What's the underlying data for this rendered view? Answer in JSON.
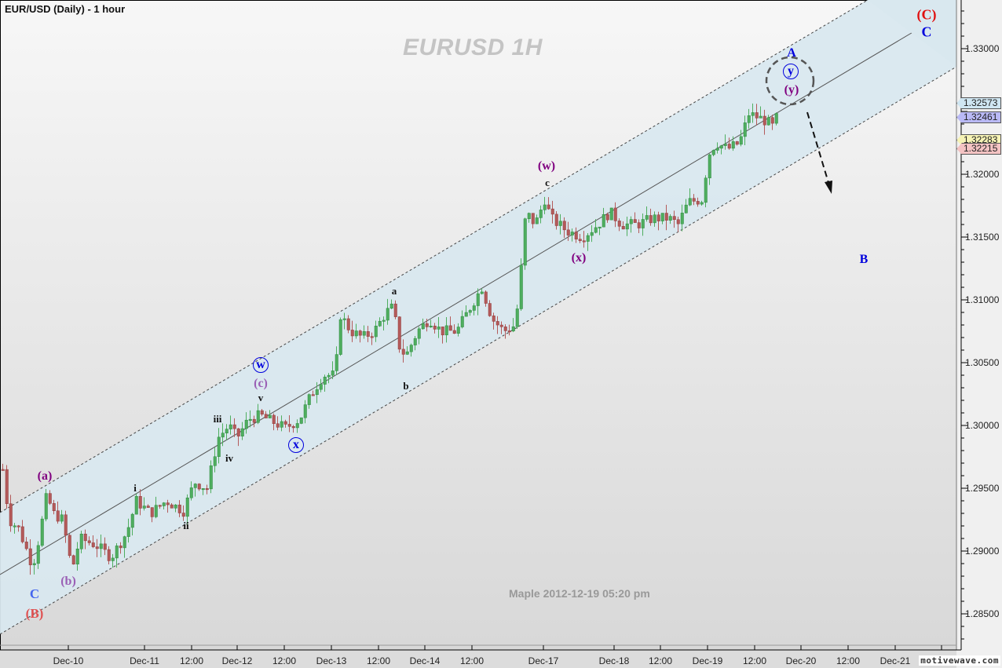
{
  "header": {
    "title": "EUR/USD (Daily) - 1 hour",
    "watermark": "EURUSD  1H",
    "stamp": "Maple  2012-12-19  05:20 pm",
    "logo": "motivewave.com"
  },
  "colors": {
    "up_candle": "#4fae5f",
    "down_candle": "#b45a5a",
    "channel_fill": "#d9e8ef",
    "tag_1_32573": "#cfe6f2",
    "tag_1_32461": "#b9b9f5",
    "tag_1_32283": "#f6f3b5",
    "tag_1_32215": "#f4c3c3",
    "wave_blue": "#0000dd",
    "wave_purple": "#800080",
    "wave_red": "#e01010",
    "wave_lightpurple": "#9a5fb5",
    "wave_lightblue": "#4466ee",
    "wave_lightred": "#e05050"
  },
  "chart_data": {
    "type": "candlestick",
    "title": "EUR/USD (Daily) - 1 hour",
    "subtitle": "EURUSD 1H",
    "xlabel": "",
    "ylabel": "",
    "ylim": [
      1.282,
      1.3375
    ],
    "grid": false,
    "y_ticks": [
      "1.33000",
      "1.32500",
      "1.32000",
      "1.31500",
      "1.31000",
      "1.30500",
      "1.30000",
      "1.29500",
      "1.29000",
      "1.28500"
    ],
    "x_ticks": [
      "Dec-10",
      "Dec-11",
      "12:00",
      "Dec-12",
      "12:00",
      "Dec-13",
      "12:00",
      "Dec-14",
      "12:00",
      "Dec-17",
      "Dec-18",
      "12:00",
      "Dec-19",
      "12:00",
      "Dec-20",
      "12:00",
      "Dec-21"
    ],
    "price_tags": [
      {
        "value": "1.32573",
        "color": "#cfe6f2"
      },
      {
        "value": "1.32461",
        "color": "#b9b9f5"
      },
      {
        "value": "1.32283",
        "color": "#f6f3b5"
      },
      {
        "value": "1.32215",
        "color": "#f4c3c3"
      }
    ],
    "approx_path": [
      {
        "t": "Dec-07 late",
        "close": 1.292
      },
      {
        "t": "Dec-10 00:00",
        "close": 1.2905,
        "note": "low ~1.2877 (wave C / (B))"
      },
      {
        "t": "Dec-10 02:00",
        "close": 1.2945,
        "note": "wave (a) ~1.2952"
      },
      {
        "t": "Dec-10 06:00",
        "close": 1.2885,
        "note": "wave (b) ~1.2882"
      },
      {
        "t": "Dec-11 00:00",
        "close": 1.2935,
        "note": "wave i ~1.2943"
      },
      {
        "t": "Dec-11 12:00",
        "close": 1.2935,
        "note": "wave ii ~1.2928"
      },
      {
        "t": "Dec-12 00:00",
        "close": 1.3005,
        "note": "wave iii ~1.3010"
      },
      {
        "t": "Dec-12 03:00",
        "close": 1.2995,
        "note": "wave iv ~1.2990"
      },
      {
        "t": "Dec-12 08:00",
        "close": 1.301,
        "note": "wave v / (c) / w ~1.3015"
      },
      {
        "t": "Dec-12 12:00",
        "close": 1.2998,
        "note": "wave x ~1.2995"
      },
      {
        "t": "Dec-13 00:00",
        "close": 1.309,
        "note": "surge to ~1.3098"
      },
      {
        "t": "Dec-13 12:00",
        "close": 1.3095,
        "note": "wave a ~1.3100"
      },
      {
        "t": "Dec-13 16:00",
        "close": 1.306,
        "note": "wave b ~1.3040"
      },
      {
        "t": "Dec-14 00:00",
        "close": 1.3075
      },
      {
        "t": "Dec-14 12:00",
        "close": 1.31
      },
      {
        "t": "Dec-14 20:00",
        "close": 1.315
      },
      {
        "t": "Dec-16 22:00",
        "close": 1.3185,
        "note": "wave c / (w) ~1.3187"
      },
      {
        "t": "Dec-17 12:00",
        "close": 1.315,
        "note": "wave (x) ~1.3145"
      },
      {
        "t": "Dec-18 00:00",
        "close": 1.317
      },
      {
        "t": "Dec-18 12:00",
        "close": 1.3165
      },
      {
        "t": "Dec-19 00:00",
        "close": 1.3215
      },
      {
        "t": "Dec-19 12:00",
        "close": 1.325,
        "note": "high ~1.3257"
      },
      {
        "t": "Dec-19 17:00",
        "close": 1.3246,
        "note": "wave (y) / y / A"
      }
    ],
    "annotations": [
      {
        "text": "(C)",
        "color": "red",
        "x": "Dec-21 12:00",
        "y": 1.336
      },
      {
        "text": "C",
        "color": "blue",
        "x": "Dec-21 12:00",
        "y": 1.3343
      },
      {
        "text": "A",
        "color": "blue"
      },
      {
        "text": "y",
        "circled": true,
        "color": "blue"
      },
      {
        "text": "(y)",
        "color": "purple"
      },
      {
        "text": "B",
        "color": "blue",
        "x": "Dec-20 12:00",
        "y": 1.3137
      },
      {
        "text": "(w)",
        "color": "purple"
      },
      {
        "text": "c",
        "color": "black"
      },
      {
        "text": "(x)",
        "color": "purple"
      },
      {
        "text": "a",
        "color": "black"
      },
      {
        "text": "b",
        "color": "black"
      },
      {
        "text": "w",
        "circled": true,
        "color": "blue"
      },
      {
        "text": "(c)",
        "color": "light-purple"
      },
      {
        "text": "v",
        "color": "black"
      },
      {
        "text": "x",
        "circled": true,
        "color": "blue"
      },
      {
        "text": "iii",
        "color": "black"
      },
      {
        "text": "iv",
        "color": "black"
      },
      {
        "text": "i",
        "color": "black"
      },
      {
        "text": "ii",
        "color": "black"
      },
      {
        "text": "(a)",
        "color": "purple"
      },
      {
        "text": "(b)",
        "color": "light-purple"
      },
      {
        "text": "C",
        "color": "light-blue"
      },
      {
        "text": "(B)",
        "color": "light-red"
      }
    ],
    "channel": {
      "style": "parallel channel with dashed bounds and solid median",
      "fill": "#d9e8ef"
    },
    "projection": "dashed arrow pointing down from (y) peak toward B"
  },
  "labels": {
    "cap_C": "(C)",
    "C_top": "C",
    "A": "A",
    "y_circ": "y",
    "y_paren": "(y)",
    "B": "B",
    "w_paren": "(w)",
    "c_small": "c",
    "x_paren": "(x)",
    "a_small": "a",
    "b_small": "b",
    "w_circ": "w",
    "c_paren": "(c)",
    "v": "v",
    "x_circ": "x",
    "iii": "iii",
    "iv": "iv",
    "i": "i",
    "ii": "ii",
    "a_paren": "(a)",
    "b_paren": "(b)",
    "C_low": "C",
    "B_paren": "(B)"
  }
}
